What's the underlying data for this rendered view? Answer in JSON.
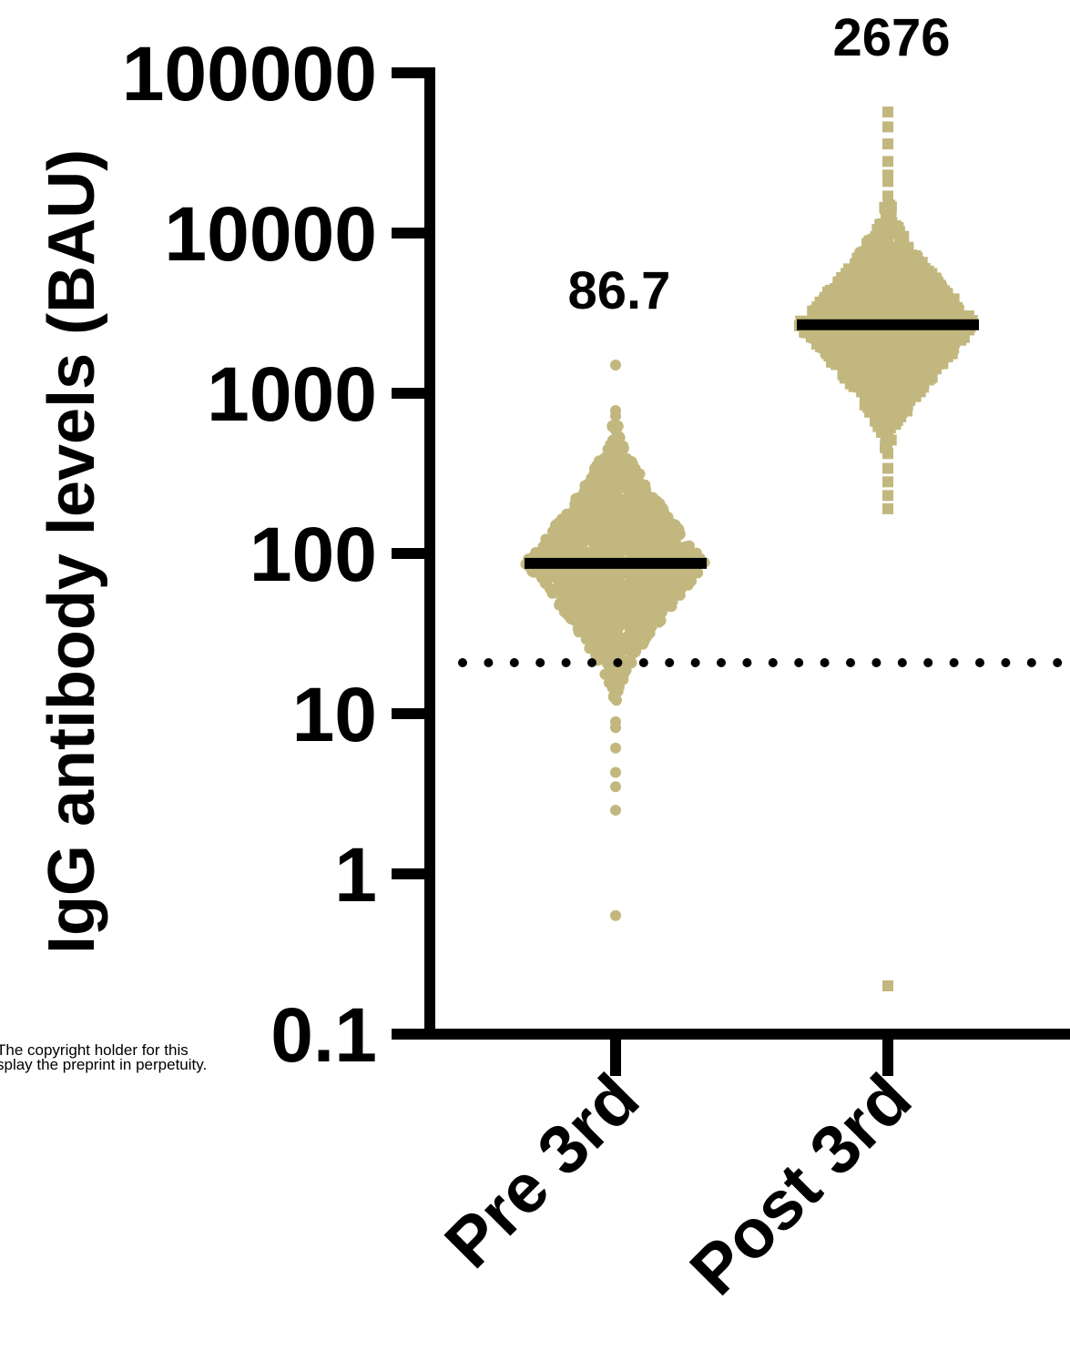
{
  "chart_data": {
    "type": "scatter",
    "ylabel": "IgG antibody levels (BAU)",
    "xlabel": "",
    "yscale": "log",
    "ylim": [
      0.1,
      100000
    ],
    "yticks": [
      "0.1",
      "1",
      "10",
      "100",
      "1000",
      "10000",
      "100000"
    ],
    "categories": [
      "Pre 3rd",
      "Post 3rd"
    ],
    "threshold": 20,
    "series": [
      {
        "category": "Pre 3rd",
        "marker": "circle",
        "median": 86.7,
        "median_label": "86.7",
        "outliers": [
          1500,
          780,
          720,
          8.9,
          8.2,
          6.1,
          4.3,
          3.5,
          2.5,
          0.55
        ],
        "range": [
          12,
          650
        ]
      },
      {
        "category": "Post 3rd",
        "marker": "square",
        "median": 2676,
        "median_label": "2676",
        "outliers": [
          57000,
          46000,
          36000,
          28000,
          23000,
          21000,
          17000,
          420,
          340,
          280,
          230,
          190,
          0.2
        ],
        "range": [
          450,
          15000
        ]
      }
    ],
    "colors": {
      "points": "#c2b87f",
      "median": "#000000",
      "axis": "#000000"
    }
  },
  "footnote": {
    "line1": "The copyright holder for this",
    "line2": "splay the preprint in perpetuity."
  }
}
